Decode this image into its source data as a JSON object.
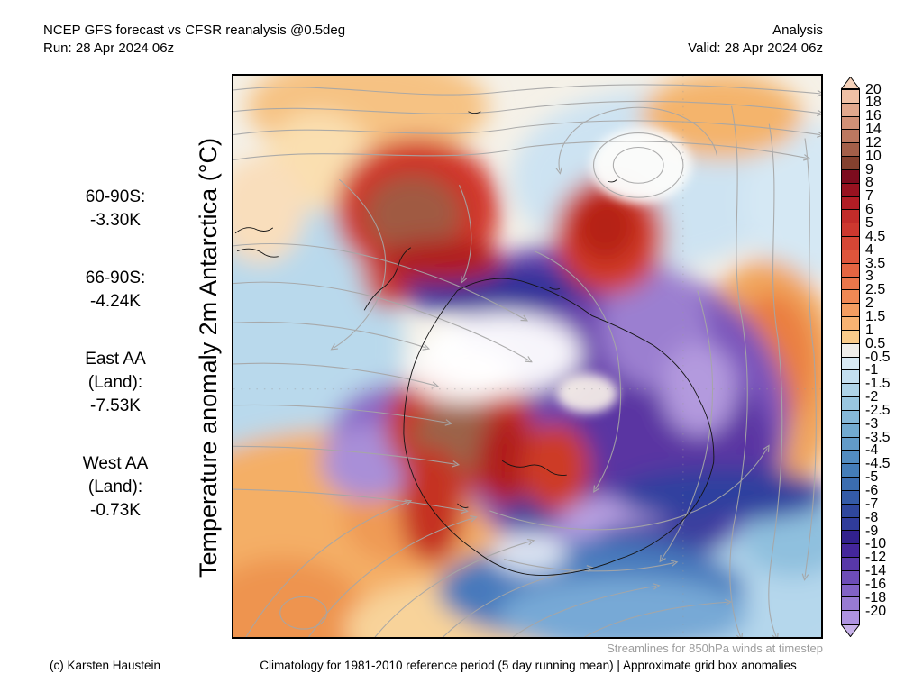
{
  "header": {
    "title": "NCEP GFS forecast vs CFSR reanalysis @0.5deg",
    "run_line": "Run: 28 Apr 2024 06z",
    "analysis_label": "Analysis",
    "valid_line": "Valid: 28 Apr 2024 06z"
  },
  "left_panel": {
    "axis_label": "Temperature anomaly 2m Antarctica (°C)",
    "stats": [
      {
        "lines": [
          "60-90S:",
          "-3.30K"
        ]
      },
      {
        "lines": [
          "66-90S:",
          "-4.24K"
        ]
      },
      {
        "lines": [
          "East AA",
          "(Land):",
          "-7.53K"
        ]
      },
      {
        "lines": [
          "West AA",
          "(Land):",
          "-0.73K"
        ]
      }
    ]
  },
  "map": {
    "note": "Streamlines for 850hPa winds at timestep",
    "streamline_color": "#a6a6a6",
    "coastline_color": "#141414"
  },
  "footer": {
    "copyright": "(c) Karsten Haustein",
    "description": "Climatology for 1981-2010 reference period (5 day running mean) | Approximate grid box anomalies"
  },
  "colorbar": {
    "over_color": "#f6d2ba",
    "under_color": "#c8b2ea",
    "boundary_labels": [
      "20",
      "18",
      "16",
      "14",
      "12",
      "10",
      "9",
      "8",
      "7",
      "6",
      "5",
      "4.5",
      "4",
      "3.5",
      "3",
      "2.5",
      "2",
      "1.5",
      "1",
      "0.5",
      "-0.5",
      "-1",
      "-1.5",
      "-2",
      "-2.5",
      "-3",
      "-3.5",
      "-4",
      "-4.5",
      "-5",
      "-6",
      "-7",
      "-8",
      "-9",
      "-10",
      "-12",
      "-14",
      "-16",
      "-18",
      "-20"
    ],
    "segment_colors": [
      "#f0c0a5",
      "#e2a88d",
      "#d19076",
      "#bc7860",
      "#a35f49",
      "#84412f",
      "#7c0c1e",
      "#981220",
      "#b11d25",
      "#c22c2a",
      "#cd382f",
      "#d64635",
      "#de553b",
      "#e56542",
      "#eb764b",
      "#f08854",
      "#f49d61",
      "#f7b272",
      "#facb8a",
      "#f0eeea",
      "#d9eaf4",
      "#c4dff0",
      "#aed3e8",
      "#99c6e0",
      "#85b8d8",
      "#72aad0",
      "#629bc8",
      "#528cc0",
      "#447db8",
      "#3b6db0",
      "#345ba7",
      "#2f479d",
      "#303c9b",
      "#32218d",
      "#44269b",
      "#5838a8",
      "#6d4db7",
      "#8263c6",
      "#987bd3",
      "#ae93e1"
    ]
  }
}
